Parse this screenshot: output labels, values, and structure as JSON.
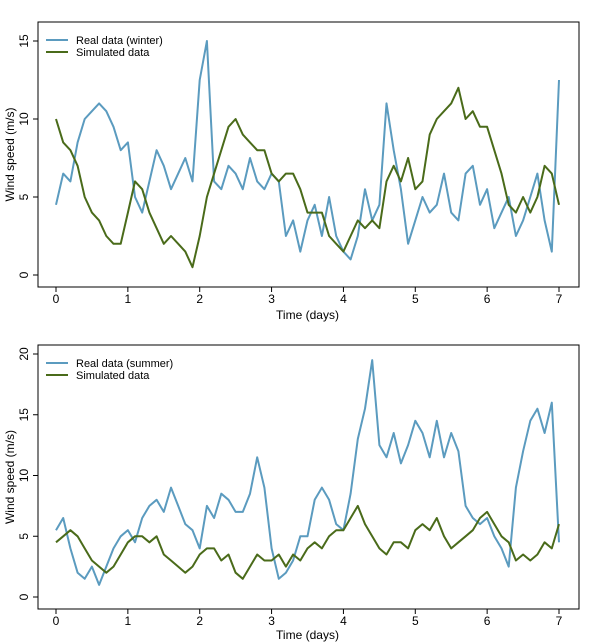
{
  "chart_data": [
    {
      "type": "line",
      "title": "",
      "xlabel": "Time (days)",
      "ylabel": "Wind speed (m/s)",
      "xlim": [
        0,
        7
      ],
      "ylim": [
        0,
        16
      ],
      "xticks": [
        "0",
        "1",
        "2",
        "3",
        "4",
        "5",
        "6",
        "7"
      ],
      "yticks": [
        "0",
        "5",
        "10",
        "15"
      ],
      "legend_position": "top-left",
      "grid": false,
      "series": [
        {
          "name": "Real data (winter)",
          "color": "#5b9bbf",
          "x": [
            0,
            0.1,
            0.2,
            0.3,
            0.4,
            0.5,
            0.6,
            0.7,
            0.8,
            0.9,
            1.0,
            1.1,
            1.2,
            1.3,
            1.4,
            1.5,
            1.6,
            1.7,
            1.8,
            1.9,
            2.0,
            2.1,
            2.2,
            2.3,
            2.4,
            2.5,
            2.6,
            2.7,
            2.8,
            2.9,
            3.0,
            3.1,
            3.2,
            3.3,
            3.4,
            3.5,
            3.6,
            3.7,
            3.8,
            3.9,
            4.0,
            4.1,
            4.2,
            4.3,
            4.4,
            4.5,
            4.6,
            4.7,
            4.8,
            4.9,
            5.0,
            5.1,
            5.2,
            5.3,
            5.4,
            5.5,
            5.6,
            5.7,
            5.8,
            5.9,
            6.0,
            6.1,
            6.2,
            6.3,
            6.4,
            6.5,
            6.6,
            6.7,
            6.8,
            6.9,
            7.0
          ],
          "values": [
            4.5,
            6.5,
            6.0,
            8.5,
            10.0,
            10.5,
            11.0,
            10.5,
            9.5,
            8.0,
            8.5,
            5.0,
            4.0,
            6.0,
            8.0,
            7.0,
            5.5,
            6.5,
            7.5,
            6.0,
            12.5,
            15.0,
            6.0,
            5.5,
            7.0,
            6.5,
            5.5,
            7.5,
            6.0,
            5.5,
            6.5,
            6.0,
            2.5,
            3.5,
            1.5,
            3.5,
            4.5,
            2.5,
            5.0,
            2.5,
            1.5,
            1.0,
            2.5,
            5.5,
            3.5,
            4.5,
            11.0,
            8.0,
            5.5,
            2.0,
            3.5,
            5.0,
            4.0,
            4.5,
            6.5,
            4.0,
            3.5,
            6.5,
            7.0,
            4.5,
            5.5,
            3.0,
            4.0,
            5.0,
            2.5,
            3.5,
            5.0,
            6.5,
            3.5,
            1.5,
            12.5
          ]
        },
        {
          "name": "Simulated data",
          "color": "#4a6b1a",
          "x": [
            0,
            0.1,
            0.2,
            0.3,
            0.4,
            0.5,
            0.6,
            0.7,
            0.8,
            0.9,
            1.0,
            1.1,
            1.2,
            1.3,
            1.4,
            1.5,
            1.6,
            1.7,
            1.8,
            1.9,
            2.0,
            2.1,
            2.2,
            2.3,
            2.4,
            2.5,
            2.6,
            2.7,
            2.8,
            2.9,
            3.0,
            3.1,
            3.2,
            3.3,
            3.4,
            3.5,
            3.6,
            3.7,
            3.8,
            3.9,
            4.0,
            4.1,
            4.2,
            4.3,
            4.4,
            4.5,
            4.6,
            4.7,
            4.8,
            4.9,
            5.0,
            5.1,
            5.2,
            5.3,
            5.4,
            5.5,
            5.6,
            5.7,
            5.8,
            5.9,
            6.0,
            6.1,
            6.2,
            6.3,
            6.4,
            6.5,
            6.6,
            6.7,
            6.8,
            6.9,
            7.0
          ],
          "values": [
            10.0,
            8.5,
            8.0,
            7.0,
            5.0,
            4.0,
            3.5,
            2.5,
            2.0,
            2.0,
            4.0,
            6.0,
            5.5,
            4.0,
            3.0,
            2.0,
            2.5,
            2.0,
            1.5,
            0.5,
            2.5,
            5.0,
            6.5,
            8.0,
            9.5,
            10.0,
            9.0,
            8.5,
            8.0,
            8.0,
            6.5,
            6.0,
            6.5,
            6.5,
            5.5,
            4.0,
            4.0,
            4.0,
            2.5,
            2.0,
            1.5,
            2.5,
            3.5,
            3.0,
            3.5,
            3.0,
            6.0,
            7.0,
            6.0,
            7.5,
            5.5,
            6.0,
            9.0,
            10.0,
            10.5,
            11.0,
            12.0,
            10.0,
            10.5,
            9.5,
            9.5,
            8.0,
            6.5,
            4.5,
            4.0,
            5.0,
            4.0,
            5.0,
            7.0,
            6.5,
            4.5
          ]
        }
      ]
    },
    {
      "type": "line",
      "title": "",
      "xlabel": "Time (days)",
      "ylabel": "Wind speed (m/s)",
      "xlim": [
        0,
        7
      ],
      "ylim": [
        0,
        20
      ],
      "xticks": [
        "0",
        "1",
        "2",
        "3",
        "4",
        "5",
        "6",
        "7"
      ],
      "yticks": [
        "0",
        "5",
        "10",
        "15",
        "20"
      ],
      "legend_position": "top-left",
      "grid": false,
      "series": [
        {
          "name": "Real data (summer)",
          "color": "#5b9bbf",
          "x": [
            0,
            0.1,
            0.2,
            0.3,
            0.4,
            0.5,
            0.6,
            0.7,
            0.8,
            0.9,
            1.0,
            1.1,
            1.2,
            1.3,
            1.4,
            1.5,
            1.6,
            1.7,
            1.8,
            1.9,
            2.0,
            2.1,
            2.2,
            2.3,
            2.4,
            2.5,
            2.6,
            2.7,
            2.8,
            2.9,
            3.0,
            3.1,
            3.2,
            3.3,
            3.4,
            3.5,
            3.6,
            3.7,
            3.8,
            3.9,
            4.0,
            4.1,
            4.2,
            4.3,
            4.4,
            4.5,
            4.6,
            4.7,
            4.8,
            4.9,
            5.0,
            5.1,
            5.2,
            5.3,
            5.4,
            5.5,
            5.6,
            5.7,
            5.8,
            5.9,
            6.0,
            6.1,
            6.2,
            6.3,
            6.4,
            6.5,
            6.6,
            6.7,
            6.8,
            6.9,
            7.0
          ],
          "values": [
            5.5,
            6.5,
            4.0,
            2.0,
            1.5,
            2.5,
            1.0,
            2.5,
            4.0,
            5.0,
            5.5,
            4.5,
            6.5,
            7.5,
            8.0,
            7.0,
            9.0,
            7.5,
            6.0,
            5.5,
            4.0,
            7.5,
            6.5,
            8.5,
            8.0,
            7.0,
            7.0,
            8.5,
            11.5,
            9.0,
            4.0,
            1.5,
            2.0,
            3.0,
            5.0,
            5.0,
            8.0,
            9.0,
            8.0,
            6.0,
            5.5,
            8.5,
            13.0,
            15.5,
            19.5,
            12.5,
            11.5,
            13.5,
            11.0,
            12.5,
            14.5,
            13.5,
            11.5,
            14.5,
            11.5,
            13.5,
            12.0,
            7.5,
            6.5,
            6.0,
            6.5,
            5.0,
            4.0,
            2.5,
            9.0,
            12.0,
            14.5,
            15.5,
            13.5,
            16.0,
            4.5
          ]
        },
        {
          "name": "Simulated data",
          "color": "#4a6b1a",
          "x": [
            0,
            0.1,
            0.2,
            0.3,
            0.4,
            0.5,
            0.6,
            0.7,
            0.8,
            0.9,
            1.0,
            1.1,
            1.2,
            1.3,
            1.4,
            1.5,
            1.6,
            1.7,
            1.8,
            1.9,
            2.0,
            2.1,
            2.2,
            2.3,
            2.4,
            2.5,
            2.6,
            2.7,
            2.8,
            2.9,
            3.0,
            3.1,
            3.2,
            3.3,
            3.4,
            3.5,
            3.6,
            3.7,
            3.8,
            3.9,
            4.0,
            4.1,
            4.2,
            4.3,
            4.4,
            4.5,
            4.6,
            4.7,
            4.8,
            4.9,
            5.0,
            5.1,
            5.2,
            5.3,
            5.4,
            5.5,
            5.6,
            5.7,
            5.8,
            5.9,
            6.0,
            6.1,
            6.2,
            6.3,
            6.4,
            6.5,
            6.6,
            6.7,
            6.8,
            6.9,
            7.0
          ],
          "values": [
            4.5,
            5.0,
            5.5,
            5.0,
            4.0,
            3.0,
            2.5,
            2.0,
            2.5,
            3.5,
            4.5,
            5.0,
            5.0,
            4.5,
            5.0,
            3.5,
            3.0,
            2.5,
            2.0,
            2.5,
            3.5,
            4.0,
            4.0,
            3.0,
            3.5,
            2.0,
            1.5,
            2.5,
            3.5,
            3.0,
            3.0,
            3.5,
            2.5,
            3.5,
            3.0,
            4.0,
            4.5,
            4.0,
            5.0,
            5.5,
            5.5,
            6.5,
            7.5,
            6.0,
            5.0,
            4.0,
            3.5,
            4.5,
            4.5,
            4.0,
            5.5,
            6.0,
            5.5,
            6.5,
            5.0,
            4.0,
            4.5,
            5.0,
            5.5,
            6.5,
            7.0,
            6.0,
            5.0,
            4.5,
            3.0,
            3.5,
            3.0,
            3.5,
            4.5,
            4.0,
            6.0
          ]
        }
      ]
    }
  ]
}
